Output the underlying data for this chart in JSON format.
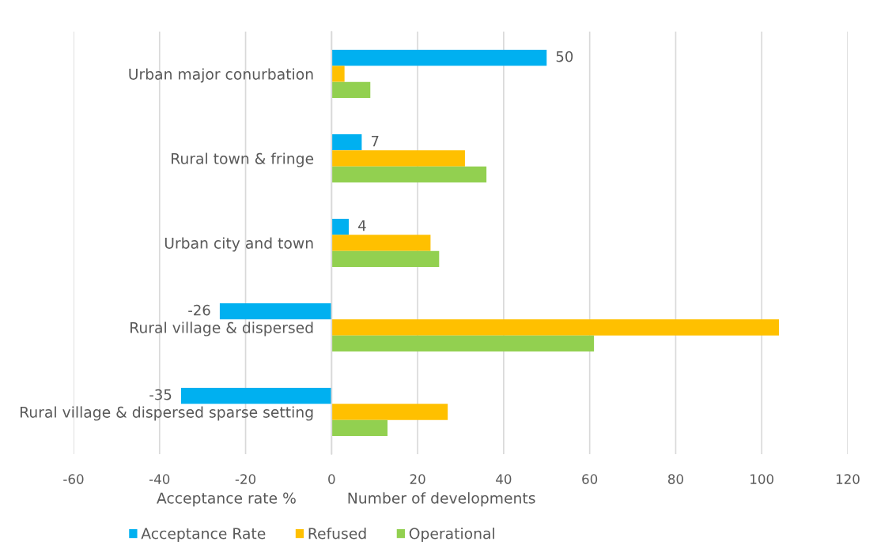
{
  "chart_data": {
    "type": "bar",
    "orientation": "horizontal",
    "categories": [
      "Urban major conurbation",
      "Rural town & fringe",
      "Urban city and town",
      "Rural village & dispersed",
      "Rural village & dispersed sparse setting"
    ],
    "series": [
      {
        "name": "Acceptance Rate",
        "color": "#00b0f0",
        "values": [
          50,
          7,
          4,
          -26,
          -35
        ],
        "value_labels": [
          "50",
          "7",
          "4",
          "-26",
          "-35"
        ]
      },
      {
        "name": "Refused",
        "color": "#ffc000",
        "values": [
          3,
          31,
          23,
          104,
          27
        ]
      },
      {
        "name": "Operational",
        "color": "#92d050",
        "values": [
          9,
          36,
          25,
          61,
          13
        ]
      }
    ],
    "xlim": [
      -60,
      120
    ],
    "xticks": [
      -60,
      -40,
      -20,
      0,
      20,
      40,
      60,
      80,
      100,
      120
    ],
    "grid": "x",
    "legend": "bottom",
    "annotations": [
      "Acceptance rate %",
      "Number of developments"
    ]
  }
}
